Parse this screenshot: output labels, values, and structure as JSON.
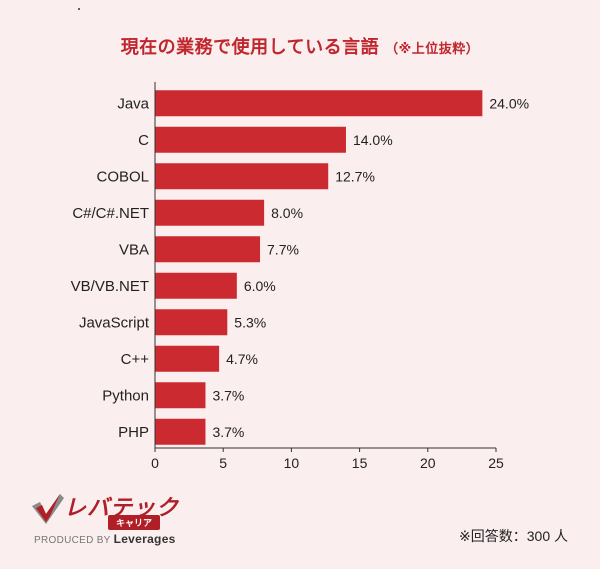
{
  "chart_data": {
    "type": "bar",
    "orientation": "horizontal",
    "title": "現在の業務で使用している言語",
    "subtitle": "（※上位抜粋）",
    "categories": [
      "Java",
      "C",
      "COBOL",
      "C#/C#.NET",
      "VBA",
      "VB/VB.NET",
      "JavaScript",
      "C++",
      "Python",
      "PHP"
    ],
    "values": [
      24.0,
      14.0,
      12.7,
      8.0,
      7.7,
      6.0,
      5.3,
      4.7,
      3.7,
      3.7
    ],
    "value_labels": [
      "24.0%",
      "14.0%",
      "12.7%",
      "8.0%",
      "7.7%",
      "6.0%",
      "5.3%",
      "4.7%",
      "3.7%",
      "3.7%"
    ],
    "xlim": [
      0,
      25
    ],
    "xticks": [
      "0",
      "5",
      "10",
      "15",
      "20",
      "25"
    ],
    "xlabel": "",
    "ylabel": "",
    "grid": false,
    "bar_color": "#cc2a31"
  },
  "footer": {
    "note": "※回答数：300 人"
  },
  "logo": {
    "brand": "レバテック",
    "badge": "キャリア",
    "produced_by": "PRODUCED BY",
    "company": "Leverages"
  },
  "colors": {
    "title": "#c0262e",
    "background": "#fbeeee",
    "bar": "#cc2a31"
  }
}
